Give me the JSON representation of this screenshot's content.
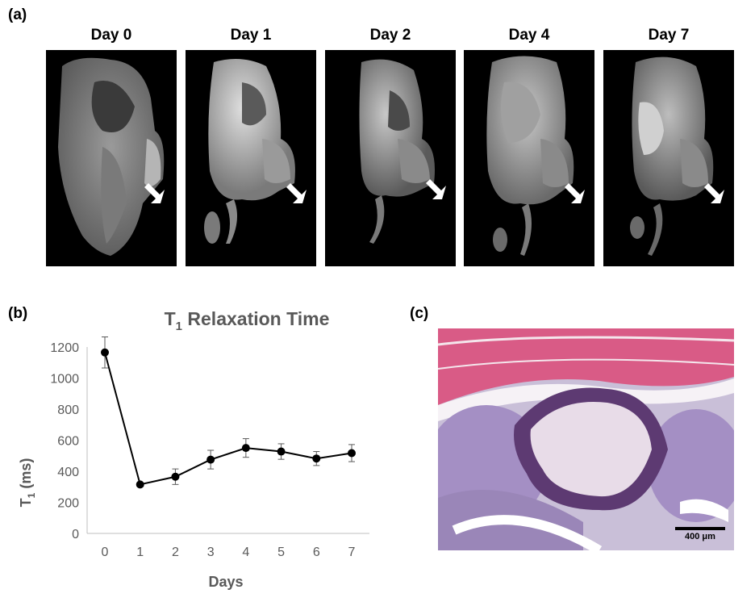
{
  "panel_a": {
    "label": "(a)",
    "days": [
      "Day 0",
      "Day 1",
      "Day 2",
      "Day 4",
      "Day 7"
    ],
    "arrow_icon": "white-arrow-icon"
  },
  "panel_b": {
    "label": "(b)"
  },
  "panel_c": {
    "label": "(c)",
    "scale_bar": "400 μm"
  },
  "chart_data": {
    "type": "line",
    "title_main": "T",
    "title_sub": "1",
    "title_rest": " Relaxation Time",
    "ylabel_main": "T",
    "ylabel_sub": "1",
    "ylabel_rest": " (ms)",
    "xlabel": "Days",
    "x": [
      0,
      1,
      2,
      3,
      4,
      5,
      6,
      7
    ],
    "x_ticks": [
      "0",
      "1",
      "2",
      "3",
      "4",
      "5",
      "6",
      "7"
    ],
    "y_ticks": [
      "0",
      "200",
      "400",
      "600",
      "800",
      "1000",
      "1200"
    ],
    "ylim": [
      0,
      1200
    ],
    "grid": false,
    "series": [
      {
        "values": [
          1165,
          315,
          365,
          475,
          550,
          527,
          482,
          517
        ],
        "errors": [
          100,
          10,
          50,
          60,
          60,
          50,
          45,
          55
        ]
      }
    ],
    "colors": {
      "line": "#000000",
      "marker": "#000000",
      "title": "#595959",
      "axis_text": "#595959"
    }
  }
}
